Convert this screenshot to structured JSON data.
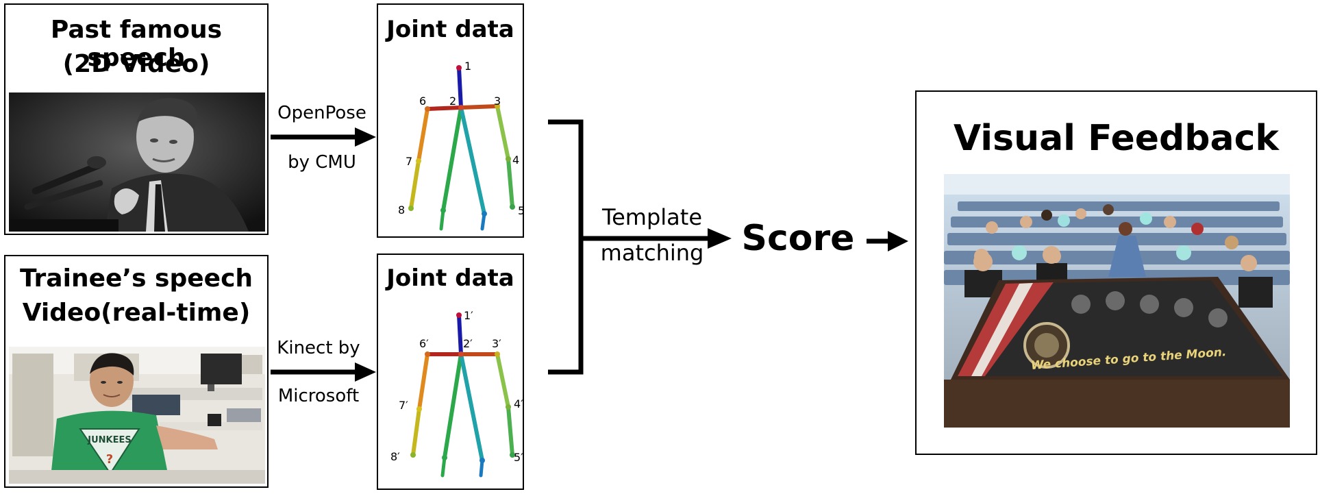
{
  "source_box": {
    "title_line1": "Past famous speech",
    "title_line2": "(2D Video)"
  },
  "trainee_box": {
    "title_line1": "Trainee’s speech",
    "title_line2": "Video(real-time)",
    "shirt_text": "JUNKEES"
  },
  "joint_top": {
    "title": "Joint data",
    "labels": [
      "1",
      "2",
      "3",
      "4",
      "5",
      "6",
      "7",
      "8"
    ]
  },
  "joint_bottom": {
    "title": "Joint data",
    "labels": [
      "1′",
      "2′",
      "3′",
      "4′",
      "5′",
      "6′",
      "7′",
      "8′"
    ]
  },
  "arrows": {
    "top_line1": "OpenPose",
    "top_line2": "by CMU",
    "bottom_line1": "Kinect by",
    "bottom_line2": "Microsoft",
    "merge_line1": "Template",
    "merge_line2": "matching"
  },
  "score_label": "Score",
  "feedback": {
    "title": "Visual Feedback",
    "subtitle_text": "We choose to go to the Moon."
  },
  "colors": {
    "spine": "#1a1aa8",
    "shoulder": "#b3261e",
    "head_dot": "#c0103a",
    "left_leg": "#2aa84a",
    "right_leg": "#1fa2a8",
    "right_arm": "#8bc34a",
    "left_arm_upper": "#e08a1e",
    "left_arm_lower": "#c4b81e"
  }
}
